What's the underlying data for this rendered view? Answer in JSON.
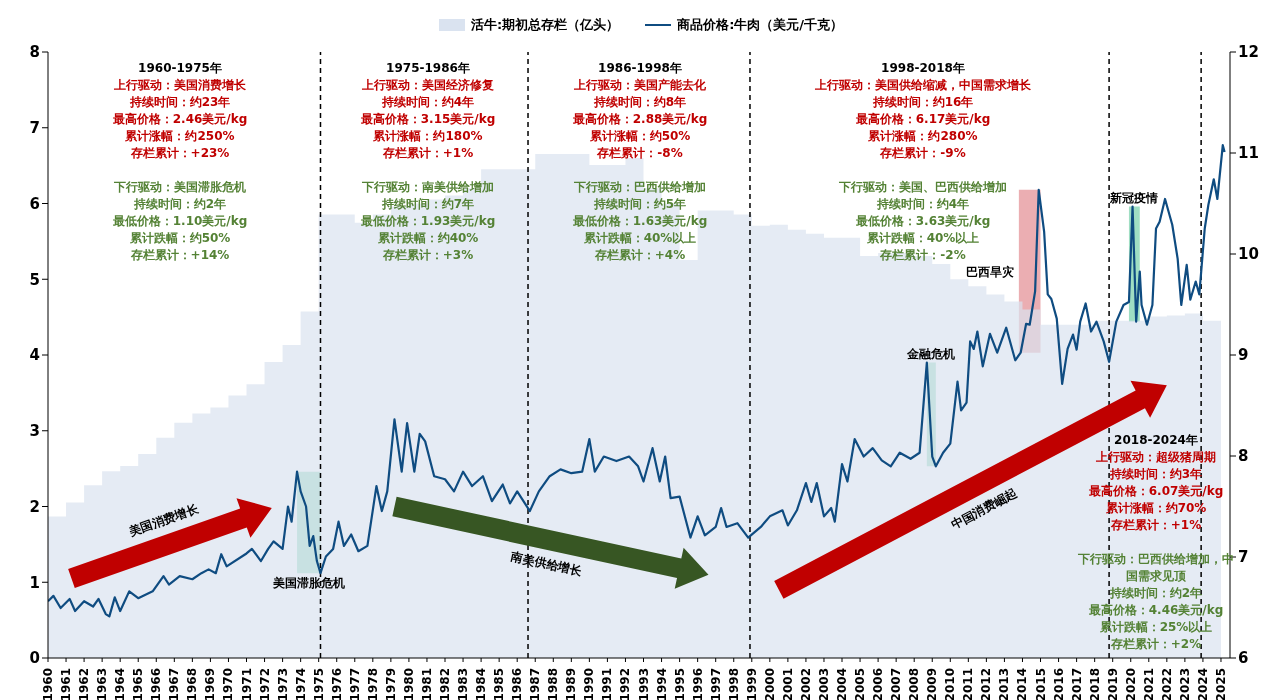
{
  "chart_data": {
    "type": "line",
    "series": [
      {
        "name": "活牛:期初总存栏（亿头）",
        "type": "area",
        "axis": "y2",
        "color": "#dae3f0",
        "x": [
          1960,
          1961,
          1962,
          1963,
          1964,
          1965,
          1966,
          1967,
          1968,
          1969,
          1970,
          1971,
          1972,
          1973,
          1974,
          1975,
          1976,
          1977,
          1978,
          1979,
          1980,
          1981,
          1982,
          1983,
          1984,
          1985,
          1986,
          1987,
          1988,
          1989,
          1990,
          1991,
          1992,
          1993,
          1994,
          1995,
          1996,
          1997,
          1998,
          1999,
          2000,
          2001,
          2002,
          2003,
          2004,
          2005,
          2006,
          2007,
          2008,
          2009,
          2010,
          2011,
          2012,
          2013,
          2014,
          2015,
          2016,
          2017,
          2018,
          2019,
          2020,
          2021,
          2022,
          2023,
          2024,
          2025
        ],
        "values": [
          7.4,
          7.54,
          7.71,
          7.85,
          7.9,
          8.02,
          8.18,
          8.33,
          8.42,
          8.48,
          8.6,
          8.71,
          8.93,
          9.1,
          9.43,
          10.39,
          10.39,
          10.31,
          10.39,
          10.47,
          10.5,
          10.54,
          10.58,
          10.65,
          10.84,
          10.84,
          10.84,
          10.99,
          10.99,
          10.99,
          10.88,
          10.88,
          10.95,
          10.65,
          10.5,
          9.94,
          10.43,
          10.43,
          10.39,
          10.28,
          10.29,
          10.24,
          10.2,
          10.16,
          10.16,
          9.98,
          10.01,
          10.01,
          9.98,
          9.9,
          9.75,
          9.68,
          9.6,
          9.53,
          9.45,
          9.3,
          9.3,
          9.3,
          9.34,
          9.34,
          9.34,
          9.38,
          9.39,
          9.41,
          9.34,
          9.23
        ]
      },
      {
        "name": "商品价格:牛肉（美元/千克）",
        "color": "#0f4c81",
        "x": [
          1960,
          1960.3,
          1960.7,
          1961.2,
          1961.5,
          1962,
          1962.5,
          1962.8,
          1963.2,
          1963.4,
          1963.7,
          1964,
          1964.5,
          1965,
          1965.8,
          1966.4,
          1966.7,
          1967.3,
          1968,
          1968.5,
          1968.9,
          1969.3,
          1969.6,
          1969.9,
          1971,
          1971.3,
          1971.8,
          1972.2,
          1972.5,
          1973,
          1973.3,
          1973.5,
          1973.8,
          1974,
          1974.3,
          1974.5,
          1974.7,
          1974.9,
          1975.1,
          1975.4,
          1975.8,
          1976.1,
          1976.4,
          1976.8,
          1977.2,
          1977.7,
          1978.2,
          1978.5,
          1978.8,
          1979.2,
          1979.6,
          1979.9,
          1980.3,
          1980.6,
          1980.9,
          1981.4,
          1982,
          1982.5,
          1983,
          1983.5,
          1984.1,
          1984.6,
          1985.2,
          1985.6,
          1986,
          1986.7,
          1987.2,
          1987.8,
          1988.4,
          1989,
          1989.6,
          1990,
          1990.3,
          1990.8,
          1991.5,
          1992.2,
          1992.7,
          1993,
          1993.5,
          1993.9,
          1994.2,
          1994.5,
          1995,
          1995.6,
          1996,
          1996.4,
          1997,
          1997.3,
          1997.6,
          1998.2,
          1998.8,
          1999.5,
          2000,
          2000.7,
          2001,
          2001.5,
          2002,
          2002.3,
          2002.6,
          2003,
          2003.4,
          2003.6,
          2004,
          2004.3,
          2004.7,
          2005.2,
          2005.7,
          2006.2,
          2006.7,
          2007.2,
          2007.8,
          2008.3,
          2008.7,
          2009,
          2009.2,
          2009.6,
          2010,
          2010.4,
          2010.6,
          2010.9,
          2011.1,
          2011.3,
          2011.5,
          2011.8,
          2012.2,
          2012.6,
          2013.1,
          2013.6,
          2013.9,
          2014.2,
          2014.4,
          2014.7,
          2014.9,
          2015.2,
          2015.4,
          2015.6,
          2015.9,
          2016.2,
          2016.5,
          2016.8,
          2017,
          2017.2,
          2017.5,
          2017.8,
          2018.1,
          2018.5,
          2018.8,
          2019.2,
          2019.6,
          2019.9,
          2020.1,
          2020.3,
          2020.5,
          2020.6,
          2020.9,
          2021.2,
          2021.4,
          2021.6,
          2021.9,
          2022.3,
          2022.6,
          2022.8,
          2023.1,
          2023.3,
          2023.6,
          2023.8,
          2024.1,
          2024.3,
          2024.6,
          2024.8,
          2025.1,
          2025.2
        ],
        "values": [
          0.75,
          0.82,
          0.66,
          0.78,
          0.62,
          0.75,
          0.68,
          0.78,
          0.58,
          0.55,
          0.8,
          0.62,
          0.88,
          0.79,
          0.88,
          1.08,
          0.97,
          1.08,
          1.04,
          1.12,
          1.17,
          1.12,
          1.37,
          1.21,
          1.38,
          1.44,
          1.28,
          1.44,
          1.54,
          1.44,
          2.0,
          1.8,
          2.46,
          2.2,
          2.0,
          1.48,
          1.61,
          1.28,
          1.12,
          1.34,
          1.44,
          1.8,
          1.48,
          1.63,
          1.41,
          1.48,
          2.27,
          1.94,
          2.2,
          3.15,
          2.46,
          3.1,
          2.46,
          2.96,
          2.86,
          2.4,
          2.36,
          2.2,
          2.46,
          2.27,
          2.4,
          2.07,
          2.29,
          2.04,
          2.2,
          1.94,
          2.2,
          2.4,
          2.49,
          2.44,
          2.46,
          2.89,
          2.46,
          2.66,
          2.6,
          2.66,
          2.53,
          2.33,
          2.77,
          2.33,
          2.66,
          2.11,
          2.13,
          1.59,
          1.87,
          1.62,
          1.73,
          1.98,
          1.73,
          1.78,
          1.59,
          1.73,
          1.87,
          1.95,
          1.75,
          1.95,
          2.31,
          2.06,
          2.31,
          1.87,
          1.98,
          1.8,
          2.56,
          2.33,
          2.89,
          2.66,
          2.77,
          2.61,
          2.53,
          2.71,
          2.63,
          2.71,
          3.9,
          2.66,
          2.53,
          2.71,
          2.83,
          3.65,
          3.27,
          3.37,
          4.18,
          4.08,
          4.31,
          3.85,
          4.28,
          4.03,
          4.36,
          3.93,
          4.03,
          4.41,
          4.4,
          4.84,
          6.18,
          5.63,
          4.8,
          4.74,
          4.48,
          3.62,
          4.08,
          4.27,
          4.07,
          4.44,
          4.68,
          4.31,
          4.44,
          4.18,
          3.91,
          4.44,
          4.66,
          4.7,
          5.96,
          4.44,
          5.1,
          4.66,
          4.4,
          4.66,
          5.67,
          5.76,
          6.06,
          5.72,
          5.27,
          4.66,
          5.19,
          4.73,
          4.97,
          4.8,
          5.67,
          5.98,
          6.32,
          6.06,
          6.77,
          6.68
        ]
      }
    ],
    "xlim": [
      1960,
      2025.5
    ],
    "xticks": [
      1960,
      1961,
      1962,
      1963,
      1964,
      1965,
      1966,
      1967,
      1968,
      1969,
      1970,
      1971,
      1972,
      1973,
      1974,
      1975,
      1976,
      1977,
      1978,
      1979,
      1980,
      1981,
      1982,
      1983,
      1984,
      1985,
      1986,
      1987,
      1988,
      1989,
      1990,
      1991,
      1992,
      1993,
      1994,
      1995,
      1996,
      1997,
      1998,
      1999,
      2000,
      2001,
      2002,
      2003,
      2004,
      2005,
      2006,
      2007,
      2008,
      2009,
      2010,
      2011,
      2012,
      2013,
      2014,
      2015,
      2016,
      2017,
      2018,
      2019,
      2020,
      2021,
      2022,
      2023,
      2024,
      2025
    ],
    "ylim": [
      0,
      8
    ],
    "yticks": [
      0,
      1,
      2,
      3,
      4,
      5,
      6,
      7,
      8
    ],
    "y2lim": [
      6,
      12
    ],
    "y2ticks": [
      6,
      7,
      8,
      9,
      10,
      11,
      12
    ],
    "legend": "top",
    "grid": false,
    "marker": "none",
    "line_style": "solid",
    "ref_lines": [
      {
        "axis": "x",
        "value": 1975.1,
        "line_style": "dashed",
        "color": "#000000"
      },
      {
        "axis": "x",
        "value": 1986.6,
        "line_style": "dashed",
        "color": "#000000"
      },
      {
        "axis": "x",
        "value": 1998.9,
        "line_style": "dashed",
        "color": "#000000"
      },
      {
        "axis": "x",
        "value": 2018.8,
        "line_style": "dashed",
        "color": "#000000"
      },
      {
        "axis": "x",
        "value": 2023.9,
        "line_style": "dashed",
        "color": "#000000"
      }
    ],
    "bands": [
      {
        "axis": "x",
        "from": 1973.8,
        "to": 1975.1,
        "label": "美国滞胀危机",
        "color": "#8ed8b8"
      },
      {
        "axis": "x",
        "from": 2008.7,
        "to": 2009.2,
        "label": "金融危机",
        "color": "#8ed8b8"
      },
      {
        "axis": "x",
        "from": 2013.8,
        "to": 2015.0,
        "label": "巴西旱灾",
        "color": "#e8a0a4"
      },
      {
        "axis": "x",
        "from": 2019.9,
        "to": 2020.5,
        "label": "新冠疫情",
        "color": "#8ed8b8"
      }
    ],
    "annotations": [
      "1960-1975年",
      "上行驱动：美国消费增长",
      "持续时间：约23年",
      "最高价格：2.46美元/kg",
      "累计涨幅：约250%",
      "存栏累计：+23%",
      "下行驱动：美国滞胀危机",
      "持续时间：约2年",
      "最低价格：1.10美元/kg",
      "累计跌幅：约50%",
      "存栏累计：+14%",
      "1975-1986年",
      "上行驱动：美国经济修复",
      "持续时间：约4年",
      "最高价格：3.15美元/kg",
      "累计涨幅：约180%",
      "存栏累计：+1%",
      "下行驱动：南美供给增加",
      "持续时间：约7年",
      "最低价格：1.93美元/kg",
      "累计跌幅：约40%",
      "存栏累计：+3%",
      "1986-1998年",
      "上行驱动：美国产能去化",
      "持续时间：约8年",
      "最高价格：2.88美元/kg",
      "累计涨幅：约50%",
      "存栏累计：-8%",
      "下行驱动：巴西供给增加",
      "持续时间：约5年",
      "最低价格：1.63美元/kg",
      "累计跌幅：40%以上",
      "存栏累计：+4%",
      "1998-2018年",
      "上行驱动：美国供给缩减，中国需求增长",
      "持续时间：约16年",
      "最高价格：6.17美元/kg",
      "累计涨幅：约280%",
      "存栏累计：-9%",
      "下行驱动：美国、巴西供给增加",
      "持续时间：约4年",
      "最低价格：3.63美元/kg",
      "累计跌幅：40%以上",
      "存栏累计：-2%",
      "2018-2024年",
      "上行驱动：超级猪周期",
      "持续时间：约3年",
      "最高价格：6.07美元/kg",
      "累计涨幅：约70%",
      "存栏累计：+1%",
      "下行驱动：巴西供给增加，中国需求见顶",
      "持续时间：约2年",
      "最高价格：4.46美元/kg",
      "累计跌幅：25%以上",
      "存栏累计：+2%",
      "美国消费增长",
      "南美供给增长",
      "中国消费崛起"
    ]
  }
}
